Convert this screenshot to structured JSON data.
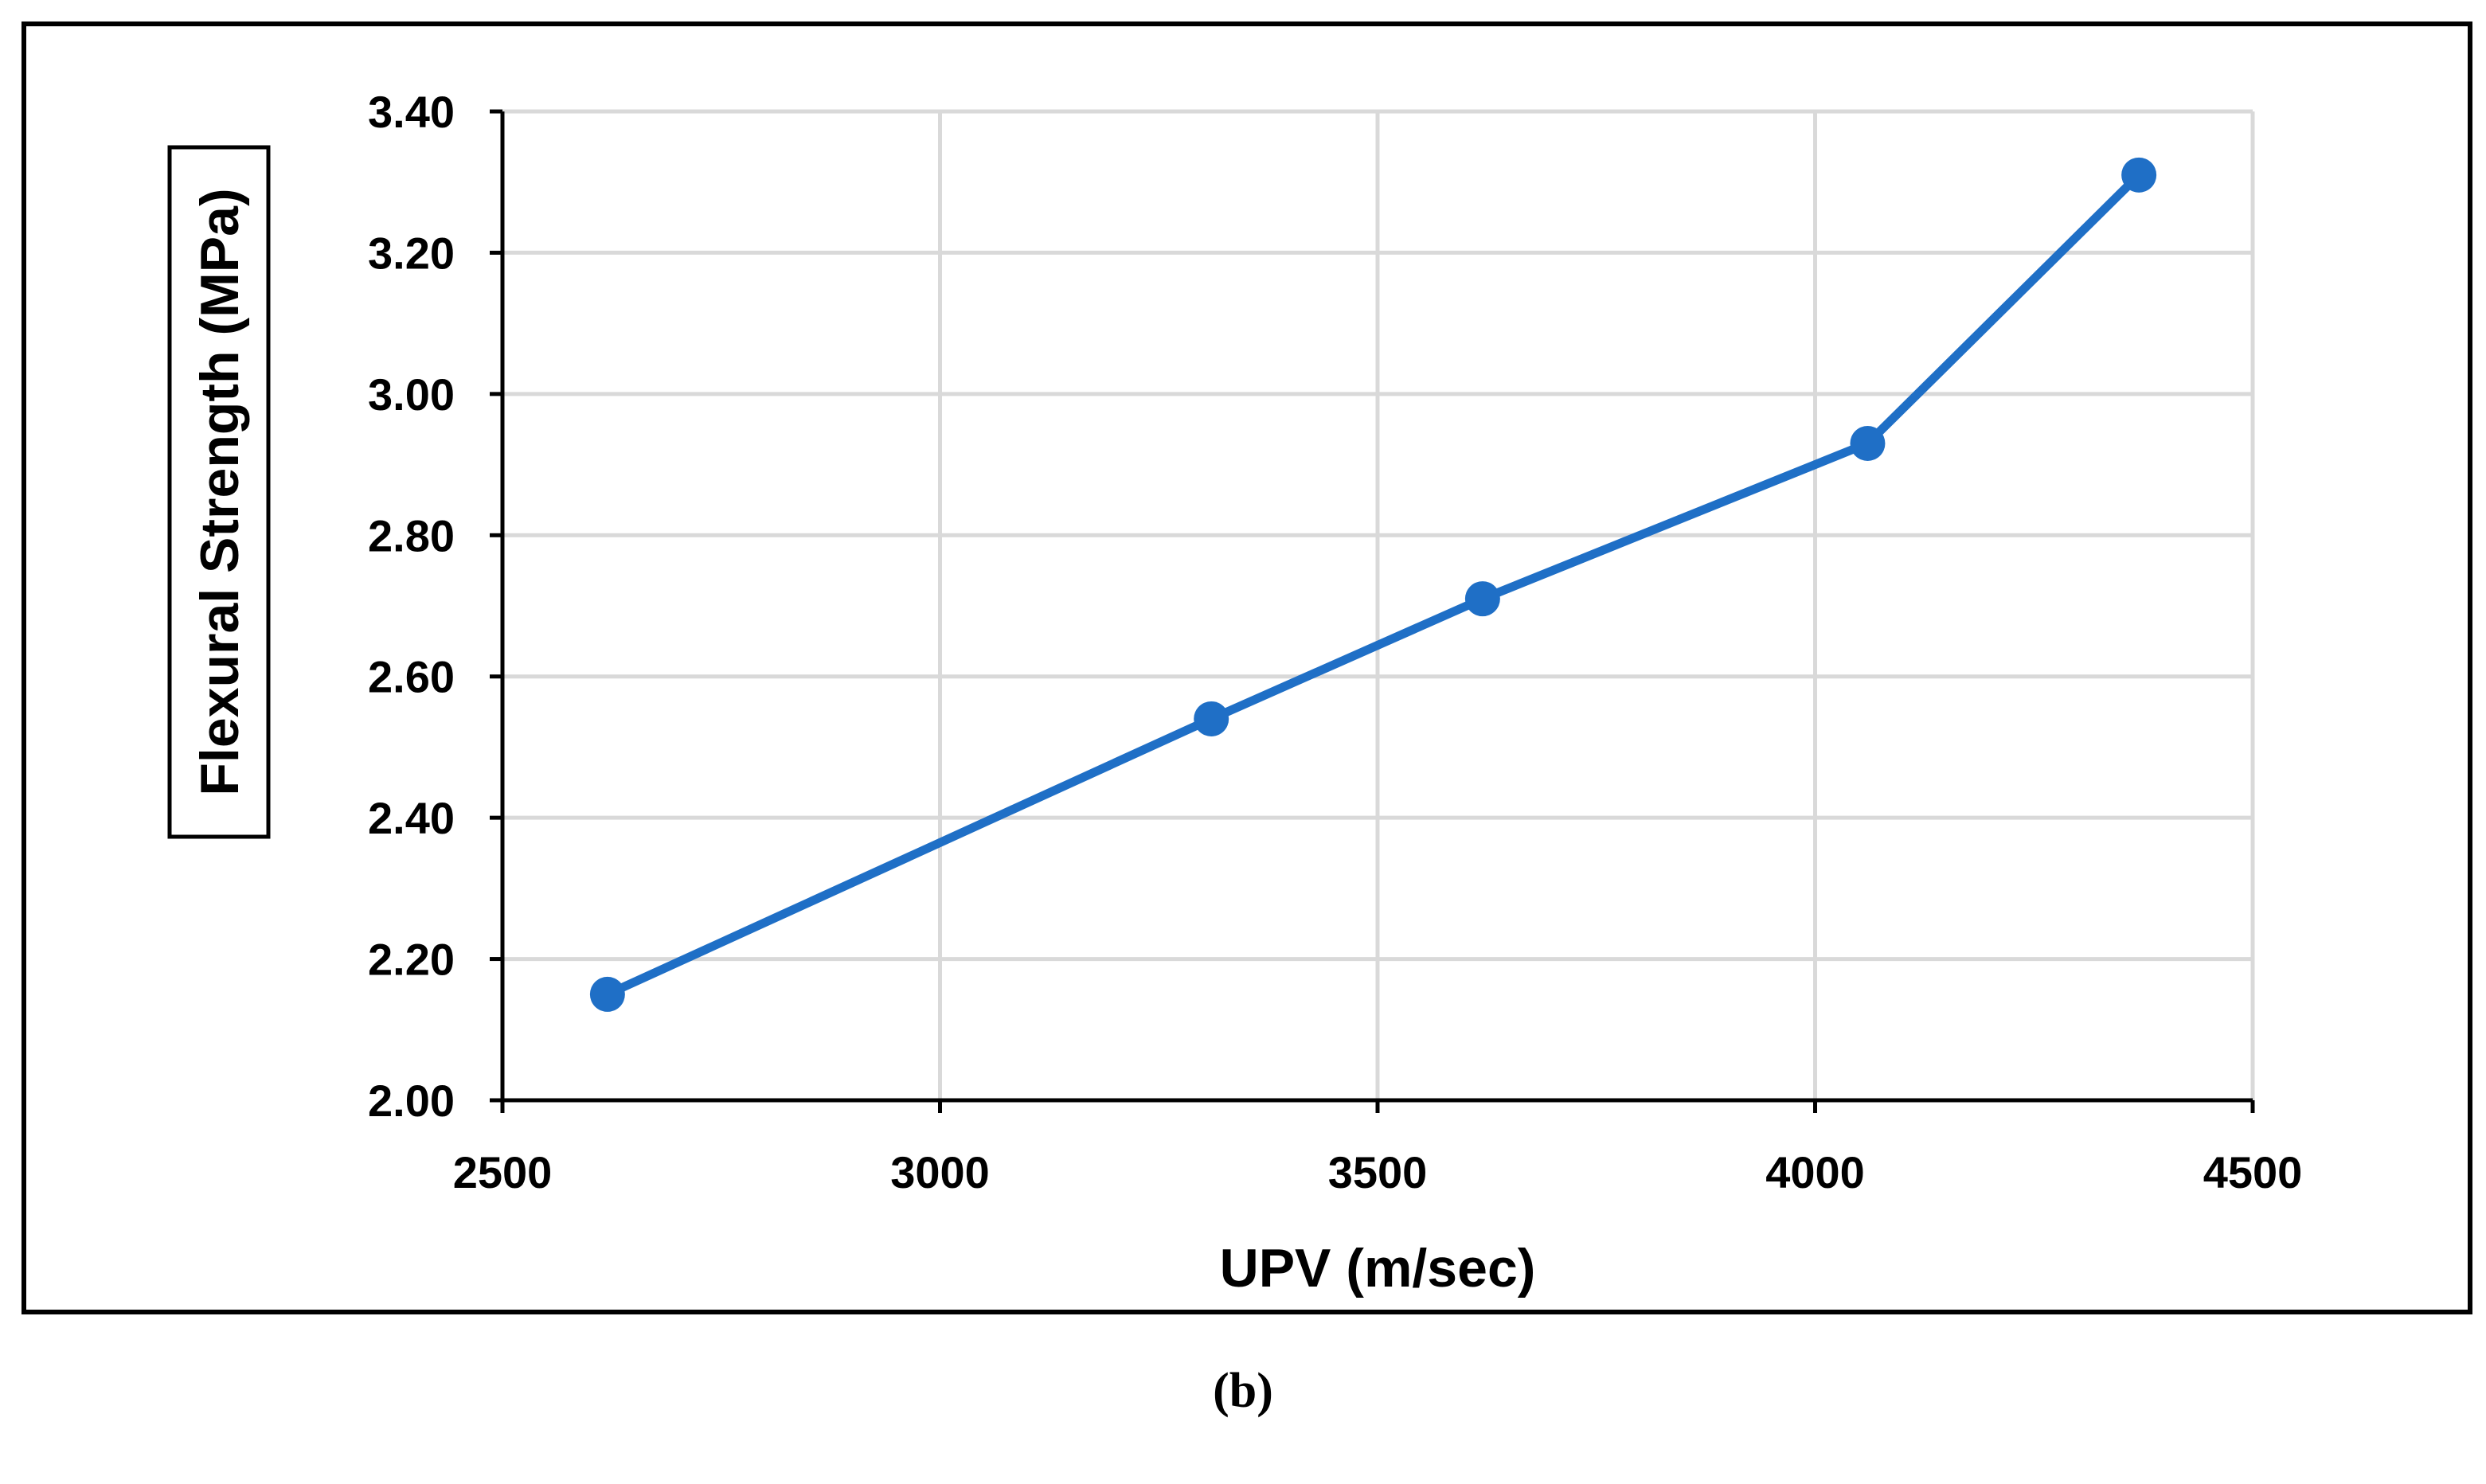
{
  "chart_data": {
    "type": "line",
    "title": "",
    "xlabel": "UPV (m/sec)",
    "ylabel": "Flexural Strength (MPa)",
    "xlim": [
      2500,
      4500
    ],
    "ylim": [
      2.0,
      3.4
    ],
    "x_ticks": [
      2500,
      3000,
      3500,
      4000,
      4500
    ],
    "x_tick_labels": [
      "2500",
      "3000",
      "3500",
      "4000",
      "4500"
    ],
    "y_ticks": [
      2.0,
      2.2,
      2.4,
      2.6,
      2.8,
      3.0,
      3.2,
      3.4
    ],
    "y_tick_labels": [
      "2.00",
      "2.20",
      "2.40",
      "2.60",
      "2.80",
      "3.00",
      "3.20",
      "3.40"
    ],
    "grid": true,
    "legend": "none",
    "series": [
      {
        "x": [
          2620,
          3310,
          3620,
          4060,
          4370
        ],
        "values": [
          2.15,
          2.54,
          2.71,
          2.93,
          3.31
        ],
        "color": "#1F6FC6"
      }
    ]
  },
  "panel_label": "(b)",
  "colors": {
    "line": "#1F6FC6",
    "grid": "#D9D9D9",
    "axis": "#000000"
  }
}
